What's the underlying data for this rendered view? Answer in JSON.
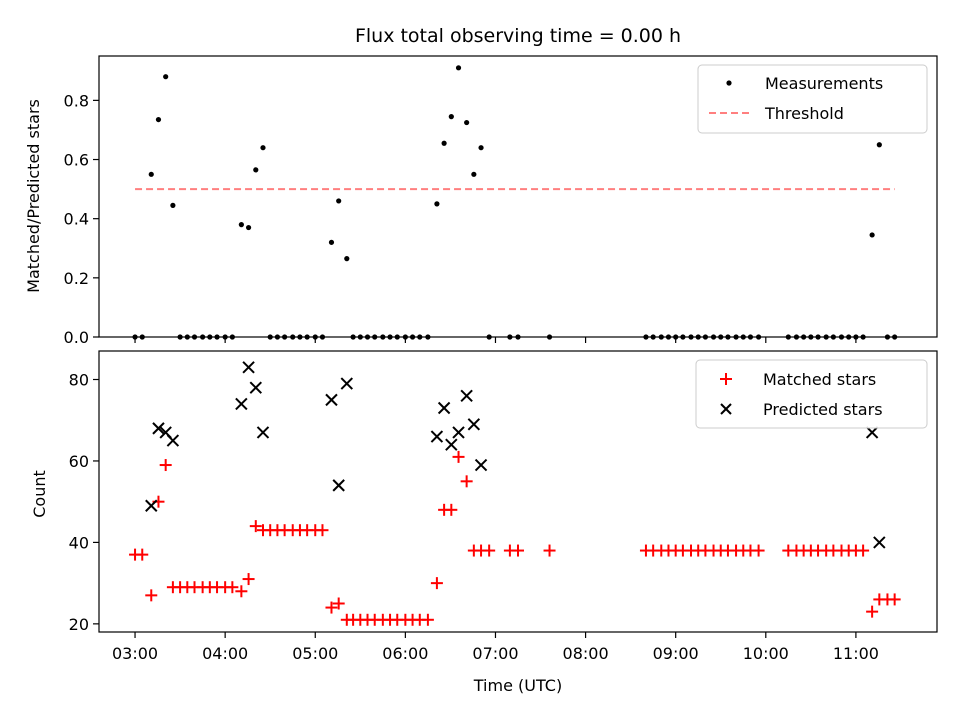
{
  "chart_data": [
    {
      "type": "scatter",
      "title": "Flux total observing time = 0.00 h",
      "xlabel": "",
      "ylabel": "Matched/Predicted stars",
      "xlim": [
        2.6,
        11.9
      ],
      "ylim": [
        0,
        0.95
      ],
      "yticks": [
        0.0,
        0.2,
        0.4,
        0.6,
        0.8
      ],
      "ytick_labels": [
        "0.0",
        "0.2",
        "0.4",
        "0.6",
        "0.8"
      ],
      "xticks": [
        3,
        4,
        5,
        6,
        7,
        8,
        9,
        10,
        11
      ],
      "legend_position": "top-right",
      "series": [
        {
          "name": "Measurements",
          "marker": "dot",
          "color": "#000000",
          "x": [
            3.0,
            3.08,
            3.18,
            3.26,
            3.34,
            3.42,
            3.5,
            3.58,
            3.66,
            3.75,
            3.83,
            3.91,
            4.0,
            4.08,
            4.18,
            4.26,
            4.34,
            4.42,
            4.5,
            4.58,
            4.66,
            4.75,
            4.83,
            4.91,
            5.0,
            5.08,
            5.18,
            5.26,
            5.35,
            5.42,
            5.5,
            5.58,
            5.66,
            5.75,
            5.83,
            5.91,
            6.0,
            6.08,
            6.16,
            6.25,
            6.35,
            6.43,
            6.51,
            6.59,
            6.68,
            6.76,
            6.84,
            6.93,
            7.16,
            7.25,
            7.6,
            8.67,
            8.75,
            8.84,
            8.92,
            9.0,
            9.08,
            9.17,
            9.25,
            9.33,
            9.42,
            9.5,
            9.58,
            9.67,
            9.75,
            9.83,
            9.92,
            10.25,
            10.34,
            10.42,
            10.5,
            10.58,
            10.67,
            10.75,
            10.84,
            10.92,
            11.0,
            11.08,
            11.18,
            11.26,
            11.35,
            11.43
          ],
          "y": [
            0.0,
            0.0,
            0.55,
            0.735,
            0.88,
            0.445,
            0.0,
            0.0,
            0.0,
            0.0,
            0.0,
            0.0,
            0.0,
            0.0,
            0.38,
            0.37,
            0.565,
            0.64,
            0.0,
            0.0,
            0.0,
            0.0,
            0.0,
            0.0,
            0.0,
            0.0,
            0.32,
            0.46,
            0.265,
            0.0,
            0.0,
            0.0,
            0.0,
            0.0,
            0.0,
            0.0,
            0.0,
            0.0,
            0.0,
            0.0,
            0.45,
            0.655,
            0.745,
            0.91,
            0.725,
            0.55,
            0.64,
            0.0,
            0.0,
            0.0,
            0.0,
            0.0,
            0.0,
            0.0,
            0.0,
            0.0,
            0.0,
            0.0,
            0.0,
            0.0,
            0.0,
            0.0,
            0.0,
            0.0,
            0.0,
            0.0,
            0.0,
            0.0,
            0.0,
            0.0,
            0.0,
            0.0,
            0.0,
            0.0,
            0.0,
            0.0,
            0.0,
            0.0,
            0.345,
            0.65,
            0.0,
            0.0
          ]
        },
        {
          "name": "Threshold",
          "type": "line",
          "style": "dashed",
          "color": "#ff7f7f",
          "x": [
            3.0,
            11.43
          ],
          "y": [
            0.5,
            0.5
          ]
        }
      ]
    },
    {
      "type": "scatter",
      "title": "",
      "xlabel": "Time (UTC)",
      "ylabel": "Count",
      "xlim": [
        2.6,
        11.9
      ],
      "ylim": [
        18,
        87
      ],
      "yticks": [
        20,
        40,
        60,
        80
      ],
      "ytick_labels": [
        "20",
        "40",
        "60",
        "80"
      ],
      "xticks": [
        3,
        4,
        5,
        6,
        7,
        8,
        9,
        10,
        11
      ],
      "xtick_labels": [
        "03:00",
        "04:00",
        "05:00",
        "06:00",
        "07:00",
        "08:00",
        "09:00",
        "10:00",
        "11:00"
      ],
      "legend_position": "top-right",
      "series": [
        {
          "name": "Matched stars",
          "marker": "plus",
          "color": "#ff0000",
          "x": [
            3.0,
            3.08,
            3.18,
            3.26,
            3.34,
            3.42,
            3.5,
            3.58,
            3.66,
            3.75,
            3.83,
            3.91,
            4.0,
            4.08,
            4.18,
            4.26,
            4.34,
            4.42,
            4.5,
            4.58,
            4.66,
            4.75,
            4.83,
            4.91,
            5.0,
            5.08,
            5.18,
            5.26,
            5.35,
            5.42,
            5.5,
            5.58,
            5.66,
            5.75,
            5.83,
            5.91,
            6.0,
            6.08,
            6.16,
            6.25,
            6.35,
            6.43,
            6.51,
            6.59,
            6.68,
            6.76,
            6.84,
            6.93,
            7.16,
            7.25,
            7.6,
            8.67,
            8.75,
            8.84,
            8.92,
            9.0,
            9.08,
            9.17,
            9.25,
            9.33,
            9.42,
            9.5,
            9.58,
            9.67,
            9.75,
            9.83,
            9.92,
            10.25,
            10.34,
            10.42,
            10.5,
            10.58,
            10.67,
            10.75,
            10.84,
            10.92,
            11.0,
            11.08,
            11.18,
            11.26,
            11.35,
            11.43
          ],
          "y": [
            37,
            37,
            27,
            50,
            59,
            29,
            29,
            29,
            29,
            29,
            29,
            29,
            29,
            29,
            28,
            31,
            44,
            43,
            43,
            43,
            43,
            43,
            43,
            43,
            43,
            43,
            24,
            25,
            21,
            21,
            21,
            21,
            21,
            21,
            21,
            21,
            21,
            21,
            21,
            21,
            30,
            48,
            48,
            61,
            55,
            38,
            38,
            38,
            38,
            38,
            38,
            38,
            38,
            38,
            38,
            38,
            38,
            38,
            38,
            38,
            38,
            38,
            38,
            38,
            38,
            38,
            38,
            38,
            38,
            38,
            38,
            38,
            38,
            38,
            38,
            38,
            38,
            38,
            23,
            26,
            26,
            26
          ]
        },
        {
          "name": "Predicted stars",
          "marker": "x",
          "color": "#000000",
          "x": [
            3.18,
            3.26,
            3.34,
            3.42,
            4.18,
            4.26,
            4.34,
            4.42,
            5.18,
            5.26,
            5.35,
            6.35,
            6.43,
            6.51,
            6.59,
            6.68,
            6.76,
            6.84,
            11.18,
            11.26
          ],
          "y": [
            49,
            68,
            67,
            65,
            74,
            83,
            78,
            67,
            75,
            54,
            79,
            66,
            73,
            64,
            67,
            76,
            69,
            59,
            67,
            40
          ]
        }
      ]
    }
  ]
}
